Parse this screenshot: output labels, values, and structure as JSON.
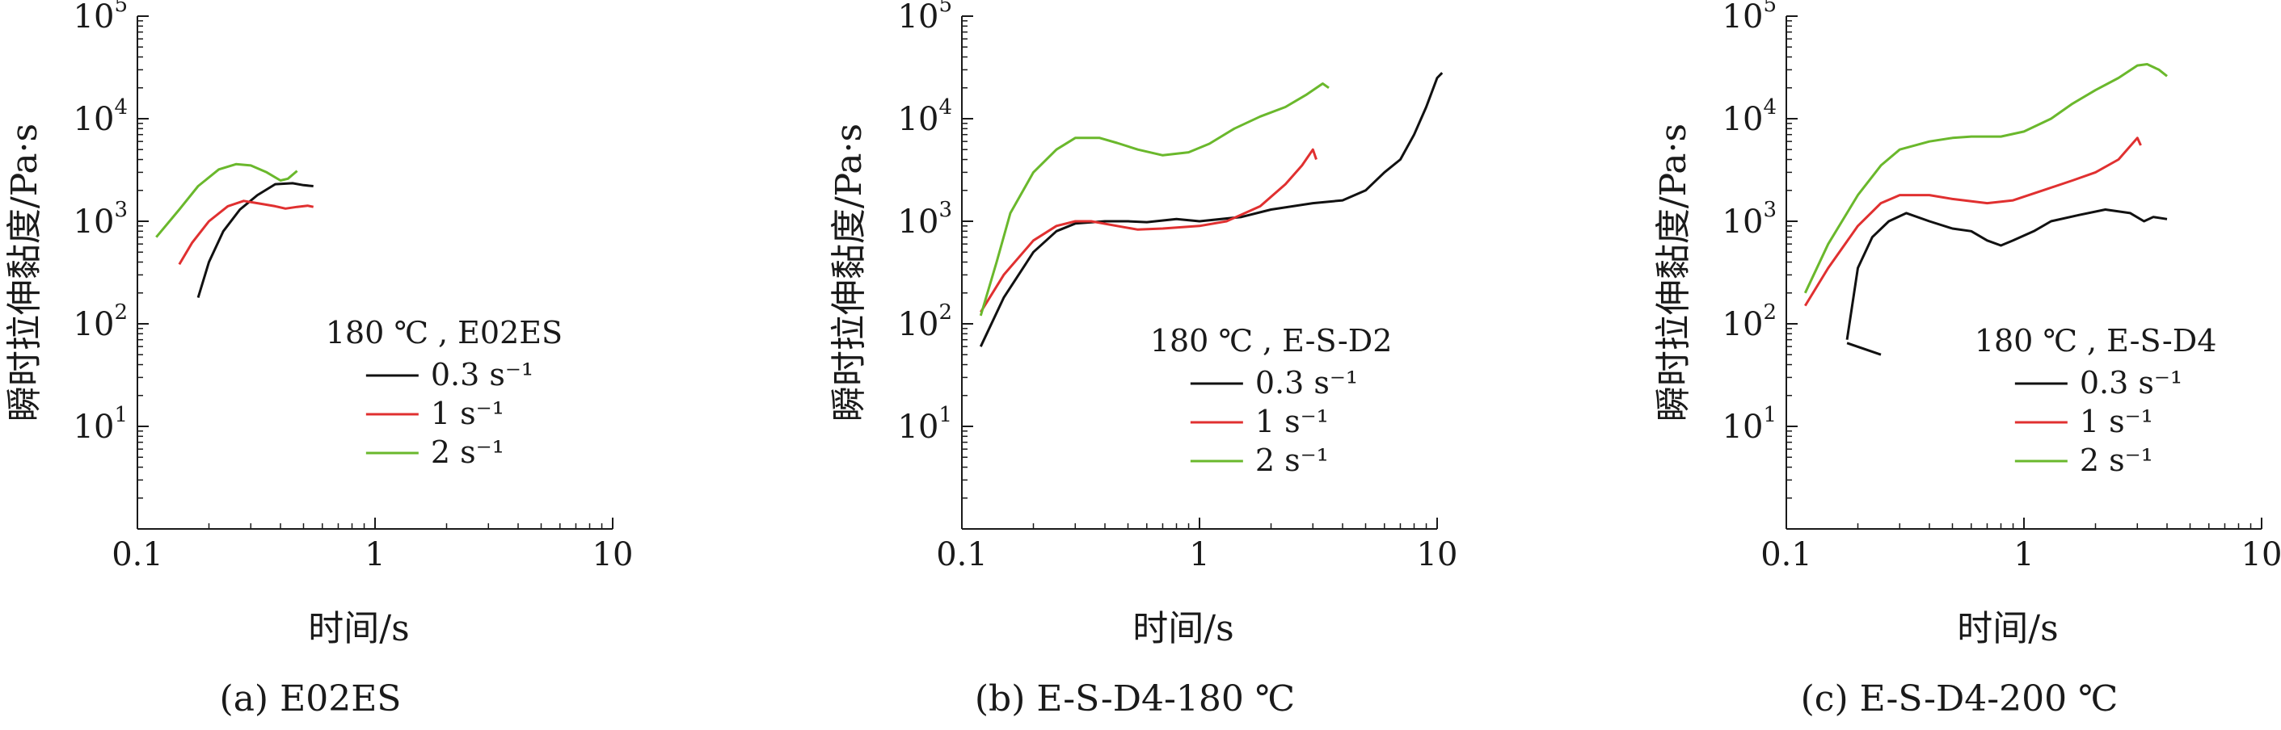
{
  "chart_data": [
    {
      "type": "line",
      "subtitle": "(a) E02ES",
      "xlabel": "时间/s",
      "ylabel": "瞬时拉伸黏度/Pa·s",
      "xscale": "log",
      "yscale": "log",
      "xlim": [
        0.1,
        10
      ],
      "ylim": [
        1,
        100000
      ],
      "x_ticks": [
        "0.1",
        "1",
        "10"
      ],
      "y_ticks": [
        "10^1",
        "10^2",
        "10^3",
        "10^4",
        "10^5"
      ],
      "legend": {
        "title": "180 ℃ , E02ES",
        "placement": "right"
      },
      "series": [
        {
          "name": "0.3 s⁻¹",
          "color": "#111111",
          "points": [
            [
              0.18,
              180
            ],
            [
              0.2,
              400
            ],
            [
              0.23,
              800
            ],
            [
              0.27,
              1300
            ],
            [
              0.32,
              1800
            ],
            [
              0.38,
              2300
            ],
            [
              0.45,
              2350
            ],
            [
              0.5,
              2250
            ],
            [
              0.55,
              2200
            ]
          ]
        },
        {
          "name": "1 s⁻¹",
          "color": "#e03030",
          "points": [
            [
              0.15,
              380
            ],
            [
              0.17,
              620
            ],
            [
              0.2,
              1000
            ],
            [
              0.24,
              1400
            ],
            [
              0.28,
              1580
            ],
            [
              0.32,
              1500
            ],
            [
              0.38,
              1400
            ],
            [
              0.42,
              1330
            ],
            [
              0.47,
              1380
            ],
            [
              0.52,
              1420
            ],
            [
              0.55,
              1380
            ]
          ]
        },
        {
          "name": "2 s⁻¹",
          "color": "#6ab82c",
          "points": [
            [
              0.12,
              700
            ],
            [
              0.15,
              1300
            ],
            [
              0.18,
              2200
            ],
            [
              0.22,
              3200
            ],
            [
              0.26,
              3600
            ],
            [
              0.3,
              3500
            ],
            [
              0.35,
              3000
            ],
            [
              0.4,
              2500
            ],
            [
              0.43,
              2600
            ],
            [
              0.47,
              3100
            ]
          ]
        }
      ]
    },
    {
      "type": "line",
      "subtitle": "(b) E-S-D4-180 ℃",
      "xlabel": "时间/s",
      "ylabel": "瞬时拉伸黏度/Pa·s",
      "xscale": "log",
      "yscale": "log",
      "xlim": [
        0.1,
        10
      ],
      "ylim": [
        1,
        100000
      ],
      "x_ticks": [
        "0.1",
        "1",
        "10"
      ],
      "y_ticks": [
        "10^1",
        "10^2",
        "10^3",
        "10^4",
        "10^5"
      ],
      "legend": {
        "title": "180 ℃ , E-S-D2",
        "placement": "right"
      },
      "series": [
        {
          "name": "0.3 s⁻¹",
          "color": "#111111",
          "points": [
            [
              0.12,
              60
            ],
            [
              0.15,
              180
            ],
            [
              0.2,
              500
            ],
            [
              0.25,
              800
            ],
            [
              0.3,
              950
            ],
            [
              0.4,
              1000
            ],
            [
              0.5,
              1000
            ],
            [
              0.6,
              980
            ],
            [
              0.8,
              1050
            ],
            [
              1,
              1000
            ],
            [
              1.5,
              1100
            ],
            [
              2,
              1300
            ],
            [
              3,
              1500
            ],
            [
              4,
              1600
            ],
            [
              5,
              2000
            ],
            [
              6,
              3000
            ],
            [
              7,
              4000
            ],
            [
              8,
              7000
            ],
            [
              9,
              13000
            ],
            [
              10,
              25000
            ],
            [
              10.5,
              28000
            ]
          ]
        },
        {
          "name": "1 s⁻¹",
          "color": "#e03030",
          "points": [
            [
              0.12,
              130
            ],
            [
              0.15,
              300
            ],
            [
              0.2,
              650
            ],
            [
              0.25,
              900
            ],
            [
              0.3,
              1000
            ],
            [
              0.35,
              1000
            ],
            [
              0.45,
              900
            ],
            [
              0.55,
              830
            ],
            [
              0.7,
              850
            ],
            [
              1,
              900
            ],
            [
              1.3,
              1000
            ],
            [
              1.8,
              1400
            ],
            [
              2.3,
              2300
            ],
            [
              2.7,
              3500
            ],
            [
              3,
              5000
            ],
            [
              3.1,
              4000
            ]
          ]
        },
        {
          "name": "2 s⁻¹",
          "color": "#6ab82c",
          "points": [
            [
              0.12,
              120
            ],
            [
              0.14,
              400
            ],
            [
              0.16,
              1200
            ],
            [
              0.2,
              3000
            ],
            [
              0.25,
              5000
            ],
            [
              0.3,
              6500
            ],
            [
              0.38,
              6500
            ],
            [
              0.45,
              5800
            ],
            [
              0.55,
              5000
            ],
            [
              0.7,
              4400
            ],
            [
              0.9,
              4700
            ],
            [
              1.1,
              5700
            ],
            [
              1.4,
              8000
            ],
            [
              1.8,
              10500
            ],
            [
              2.3,
              13000
            ],
            [
              2.8,
              17000
            ],
            [
              3.3,
              22000
            ],
            [
              3.5,
              20000
            ]
          ]
        }
      ]
    },
    {
      "type": "line",
      "subtitle": "(c) E-S-D4-200 ℃",
      "xlabel": "时间/s",
      "ylabel": "瞬时拉伸黏度/Pa·s",
      "xscale": "log",
      "yscale": "log",
      "xlim": [
        0.1,
        10
      ],
      "ylim": [
        1,
        100000
      ],
      "x_ticks": [
        "0.1",
        "1",
        "10"
      ],
      "y_ticks": [
        "10^1",
        "10^2",
        "10^3",
        "10^4",
        "10^5"
      ],
      "legend": {
        "title": "180 ℃ , E-S-D4",
        "placement": "right"
      },
      "series": [
        {
          "name": "0.3 s⁻¹",
          "color": "#111111",
          "segments": [
            [
              [
                0.18,
                70
              ],
              [
                0.2,
                350
              ],
              [
                0.23,
                700
              ],
              [
                0.27,
                1000
              ],
              [
                0.32,
                1200
              ],
              [
                0.4,
                1000
              ],
              [
                0.5,
                850
              ],
              [
                0.6,
                800
              ],
              [
                0.7,
                650
              ],
              [
                0.8,
                580
              ],
              [
                0.9,
                650
              ],
              [
                1.1,
                800
              ],
              [
                1.3,
                1000
              ],
              [
                1.7,
                1150
              ],
              [
                2.2,
                1300
              ],
              [
                2.8,
                1200
              ],
              [
                3.2,
                1000
              ],
              [
                3.5,
                1100
              ],
              [
                4,
                1050
              ]
            ],
            [
              [
                0.18,
                65
              ],
              [
                0.25,
                50
              ]
            ]
          ]
        },
        {
          "name": "1 s⁻¹",
          "color": "#e03030",
          "points": [
            [
              0.12,
              150
            ],
            [
              0.15,
              350
            ],
            [
              0.2,
              900
            ],
            [
              0.25,
              1500
            ],
            [
              0.3,
              1800
            ],
            [
              0.4,
              1800
            ],
            [
              0.5,
              1650
            ],
            [
              0.7,
              1500
            ],
            [
              0.9,
              1600
            ],
            [
              1.2,
              2000
            ],
            [
              1.6,
              2500
            ],
            [
              2,
              3000
            ],
            [
              2.5,
              4000
            ],
            [
              3,
              6500
            ],
            [
              3.1,
              5500
            ]
          ]
        },
        {
          "name": "2 s⁻¹",
          "color": "#6ab82c",
          "points": [
            [
              0.12,
              200
            ],
            [
              0.15,
              600
            ],
            [
              0.2,
              1800
            ],
            [
              0.25,
              3500
            ],
            [
              0.3,
              5000
            ],
            [
              0.4,
              6000
            ],
            [
              0.5,
              6500
            ],
            [
              0.6,
              6700
            ],
            [
              0.8,
              6700
            ],
            [
              1,
              7500
            ],
            [
              1.3,
              10000
            ],
            [
              1.6,
              14000
            ],
            [
              2,
              19000
            ],
            [
              2.5,
              25000
            ],
            [
              3,
              33000
            ],
            [
              3.3,
              34000
            ],
            [
              3.7,
              30000
            ],
            [
              4,
              26000
            ]
          ]
        }
      ]
    }
  ]
}
